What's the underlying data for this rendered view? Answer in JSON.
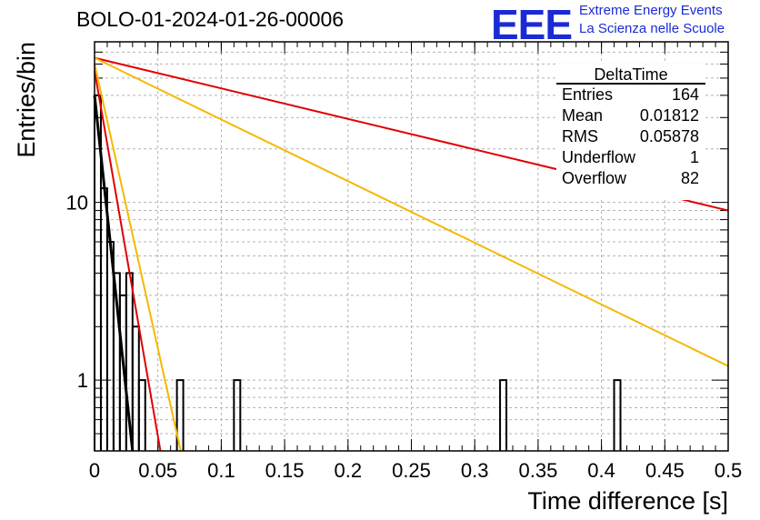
{
  "title": "BOLO-01-2024-01-26-00006",
  "logo": {
    "letters": "EEE",
    "line1": "Extreme Energy Events",
    "line2": "La Scienza nelle Scuole",
    "color": "#1a2bd6"
  },
  "chart_data": {
    "type": "line",
    "title": "BOLO-01-2024-01-26-00006",
    "xlabel": "Time difference [s]",
    "ylabel": "Entries/bin",
    "xlim": [
      0,
      0.5
    ],
    "ylim": [
      0.4,
      80
    ],
    "yscale": "log",
    "grid": true,
    "x_ticks": [
      "0",
      "0.05",
      "0.1",
      "0.15",
      "0.2",
      "0.25",
      "0.3",
      "0.35",
      "0.4",
      "0.45",
      "0.5"
    ],
    "y_ticks": [
      "1",
      "10"
    ],
    "histogram": {
      "name": "DeltaTime",
      "bin_width": 0.005,
      "bins": [
        {
          "x": 0.0,
          "count": 40
        },
        {
          "x": 0.005,
          "count": 12
        },
        {
          "x": 0.01,
          "count": 6
        },
        {
          "x": 0.015,
          "count": 4
        },
        {
          "x": 0.02,
          "count": 3
        },
        {
          "x": 0.025,
          "count": 4
        },
        {
          "x": 0.03,
          "count": 2
        },
        {
          "x": 0.035,
          "count": 1
        },
        {
          "x": 0.065,
          "count": 1
        },
        {
          "x": 0.11,
          "count": 1
        },
        {
          "x": 0.32,
          "count": 1
        },
        {
          "x": 0.41,
          "count": 1
        }
      ]
    },
    "series": [
      {
        "color": "#e00000",
        "values": [
          [
            0.0,
            65
          ],
          [
            0.5,
            9
          ]
        ]
      },
      {
        "color": "#f5b800",
        "values": [
          [
            0.0,
            65
          ],
          [
            0.5,
            1.2
          ]
        ]
      },
      {
        "color": "#e00000",
        "values": [
          [
            0.0,
            55
          ],
          [
            0.052,
            0.4
          ]
        ]
      },
      {
        "color": "#f5b800",
        "values": [
          [
            0.0,
            60
          ],
          [
            0.068,
            0.4
          ]
        ]
      },
      {
        "color": "#000000",
        "values": [
          [
            0.0,
            40
          ],
          [
            0.03,
            0.4
          ]
        ]
      }
    ],
    "stats": {
      "title": "DeltaTime",
      "rows": [
        {
          "label": "Entries",
          "value": "164"
        },
        {
          "label": "Mean",
          "value": "0.01812"
        },
        {
          "label": "RMS",
          "value": "0.05878"
        },
        {
          "label": "Underflow",
          "value": "1"
        },
        {
          "label": "Overflow",
          "value": "82"
        }
      ]
    }
  }
}
